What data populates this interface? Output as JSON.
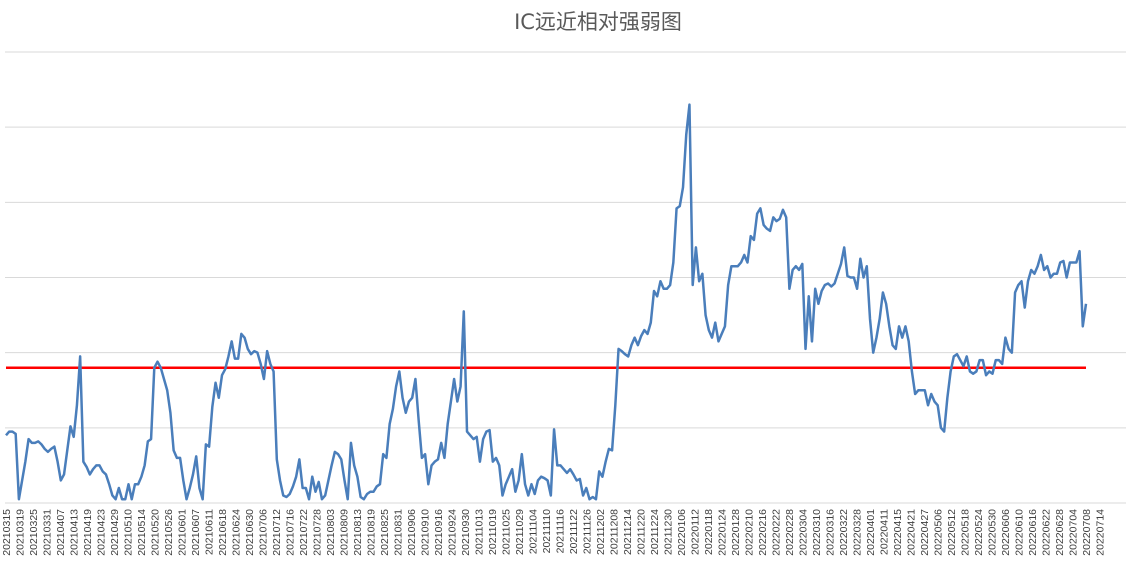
{
  "chart_data": {
    "type": "line",
    "title": "IC远近相对强弱图",
    "xlabel": "",
    "ylabel": "",
    "grid": true,
    "legend": "none",
    "colors": {
      "series": "#4a7ebb",
      "reference": "#ff0000",
      "grid": "#d9d9d9"
    },
    "x_tick_labels": [
      "20210315",
      "20210319",
      "20210325",
      "20210331",
      "20210407",
      "20210413",
      "20210419",
      "20210423",
      "20210429",
      "20210510",
      "20210514",
      "20210520",
      "20210526",
      "20210601",
      "20210607",
      "20210611",
      "20210618",
      "20210624",
      "20210630",
      "20210706",
      "20210712",
      "20210716",
      "20210722",
      "20210728",
      "20210803",
      "20210809",
      "20210813",
      "20210819",
      "20210825",
      "20210831",
      "20210906",
      "20210910",
      "20210916",
      "20210924",
      "20210930",
      "20211013",
      "20211019",
      "20211025",
      "20211029",
      "20211104",
      "20211110",
      "20211116",
      "20211122",
      "20211126",
      "20211202",
      "20211208",
      "20211214",
      "20211220",
      "20211224",
      "20211230",
      "20220106",
      "20220112",
      "20220118",
      "20220124",
      "20220128",
      "20220210",
      "20220216",
      "20220222",
      "20220228",
      "20220304",
      "20220310",
      "20220316",
      "20220322",
      "20220328",
      "20220401",
      "20220411",
      "20220415",
      "20220421",
      "20220427",
      "20220506",
      "20220512",
      "20220518",
      "20220524",
      "20220530",
      "20220606",
      "20220610",
      "20220616",
      "20220622",
      "20220628",
      "20220704",
      "20220708",
      "20220714"
    ],
    "ylim": [
      0,
      6
    ],
    "reference_line": 1.8,
    "series": [
      {
        "values": [
          0.9,
          0.95,
          0.95,
          0.92,
          0.05,
          0.3,
          0.55,
          0.85,
          0.8,
          0.8,
          0.82,
          0.78,
          0.72,
          0.68,
          0.72,
          0.75,
          0.55,
          0.3,
          0.38,
          0.7,
          1.02,
          0.88,
          1.3,
          1.95,
          0.55,
          0.48,
          0.38,
          0.45,
          0.5,
          0.5,
          0.42,
          0.38,
          0.25,
          0.1,
          0.05,
          0.2,
          0.05,
          0.05,
          0.25,
          0.05,
          0.25,
          0.25,
          0.35,
          0.5,
          0.82,
          0.85,
          1.8,
          1.88,
          1.8,
          1.65,
          1.5,
          1.2,
          0.7,
          0.6,
          0.6,
          0.3,
          0.05,
          0.2,
          0.38,
          0.62,
          0.2,
          0.05,
          0.78,
          0.75,
          1.28,
          1.6,
          1.4,
          1.7,
          1.78,
          1.95,
          2.15,
          1.92,
          1.92,
          2.25,
          2.2,
          2.05,
          1.98,
          2.02,
          2.0,
          1.85,
          1.65,
          2.02,
          1.85,
          1.75,
          0.58,
          0.3,
          0.1,
          0.08,
          0.12,
          0.22,
          0.35,
          0.58,
          0.2,
          0.2,
          0.05,
          0.35,
          0.15,
          0.28,
          0.05,
          0.1,
          0.3,
          0.5,
          0.68,
          0.65,
          0.58,
          0.3,
          0.05,
          0.8,
          0.5,
          0.35,
          0.08,
          0.05,
          0.12,
          0.15,
          0.15,
          0.22,
          0.25,
          0.65,
          0.6,
          1.05,
          1.25,
          1.55,
          1.75,
          1.4,
          1.2,
          1.35,
          1.4,
          1.65,
          1.1,
          0.6,
          0.65,
          0.25,
          0.5,
          0.55,
          0.58,
          0.8,
          0.6,
          1.05,
          1.35,
          1.65,
          1.35,
          1.55,
          2.55,
          0.95,
          0.9,
          0.85,
          0.88,
          0.55,
          0.85,
          0.95,
          0.97,
          0.55,
          0.6,
          0.5,
          0.1,
          0.25,
          0.35,
          0.45,
          0.15,
          0.3,
          0.65,
          0.25,
          0.1,
          0.25,
          0.12,
          0.3,
          0.35,
          0.33,
          0.3,
          0.1,
          0.98,
          0.5,
          0.5,
          0.45,
          0.4,
          0.45,
          0.38,
          0.3,
          0.32,
          0.1,
          0.2,
          0.05,
          0.08,
          0.05,
          0.42,
          0.35,
          0.55,
          0.72,
          0.7,
          1.3,
          2.05,
          2.02,
          1.98,
          1.95,
          2.1,
          2.2,
          2.1,
          2.22,
          2.3,
          2.25,
          2.4,
          2.82,
          2.75,
          2.95,
          2.85,
          2.85,
          2.9,
          3.2,
          3.92,
          3.95,
          4.2,
          4.9,
          5.3,
          2.9,
          3.4,
          2.95,
          3.05,
          2.5,
          2.3,
          2.2,
          2.4,
          2.15,
          2.25,
          2.35,
          2.9,
          3.15,
          3.15,
          3.15,
          3.2,
          3.3,
          3.2,
          3.55,
          3.5,
          3.85,
          3.92,
          3.7,
          3.65,
          3.62,
          3.8,
          3.75,
          3.78,
          3.9,
          3.8,
          2.85,
          3.1,
          3.15,
          3.1,
          3.18,
          2.05,
          2.75,
          2.15,
          2.85,
          2.65,
          2.82,
          2.9,
          2.92,
          2.88,
          2.92,
          3.05,
          3.18,
          3.4,
          3.02,
          3.0,
          3.0,
          2.85,
          3.25,
          3.0,
          3.15,
          2.45,
          2.0,
          2.2,
          2.45,
          2.8,
          2.65,
          2.35,
          2.1,
          2.05,
          2.35,
          2.2,
          2.35,
          2.15,
          1.75,
          1.45,
          1.5,
          1.5,
          1.5,
          1.3,
          1.45,
          1.35,
          1.3,
          1.0,
          0.95,
          1.4,
          1.75,
          1.95,
          1.98,
          1.9,
          1.82,
          1.95,
          1.75,
          1.72,
          1.75,
          1.9,
          1.9,
          1.7,
          1.75,
          1.72,
          1.9,
          1.9,
          1.85,
          2.2,
          2.05,
          2.0,
          2.8,
          2.9,
          2.95,
          2.6,
          2.95,
          3.1,
          3.05,
          3.15,
          3.3,
          3.1,
          3.15,
          3.0,
          3.05,
          3.05,
          3.2,
          3.22,
          3.0,
          3.2,
          3.2,
          3.2,
          3.35,
          2.35,
          2.65
        ]
      }
    ]
  }
}
